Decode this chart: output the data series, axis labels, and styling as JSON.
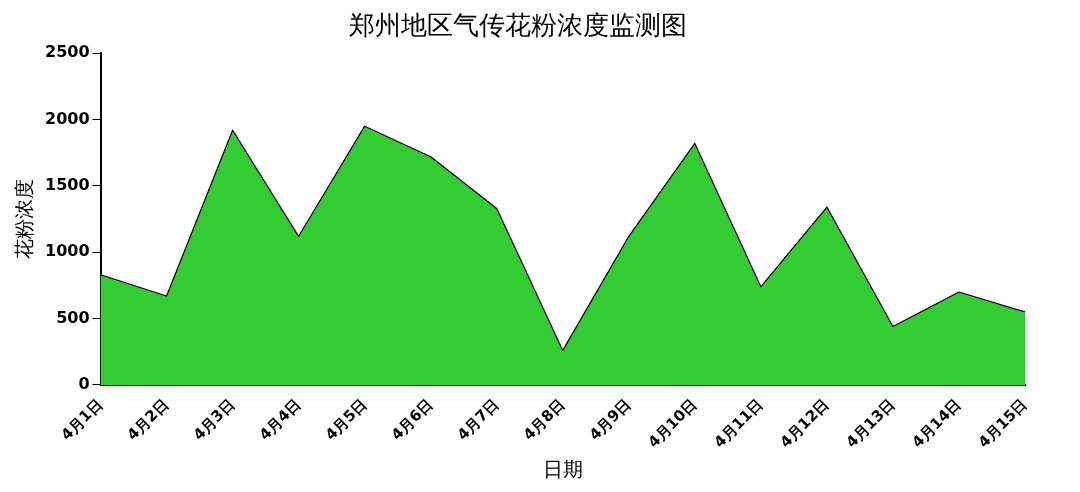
{
  "chart_data": {
    "type": "area",
    "title": "郑州地区气传花粉浓度监测图",
    "xlabel": "日期",
    "ylabel": "花粉浓度",
    "categories": [
      "4月1日",
      "4月2日",
      "4月3日",
      "4月4日",
      "4月5日",
      "4月6日",
      "4月7日",
      "4月8日",
      "4月9日",
      "4月10日",
      "4月11日",
      "4月12日",
      "4月13日",
      "4月14日",
      "4月15日"
    ],
    "series": [
      {
        "color": "#33cc33",
        "values": [
          830,
          670,
          1920,
          1120,
          1950,
          1720,
          1330,
          260,
          1120,
          1820,
          740,
          1340,
          440,
          700,
          550
        ]
      }
    ],
    "ylim": [
      0,
      2500
    ],
    "yticks": [
      0,
      500,
      1000,
      1500,
      2000,
      2500
    ],
    "grid": false,
    "legend": false,
    "marker": "none",
    "line_style": "solid"
  }
}
